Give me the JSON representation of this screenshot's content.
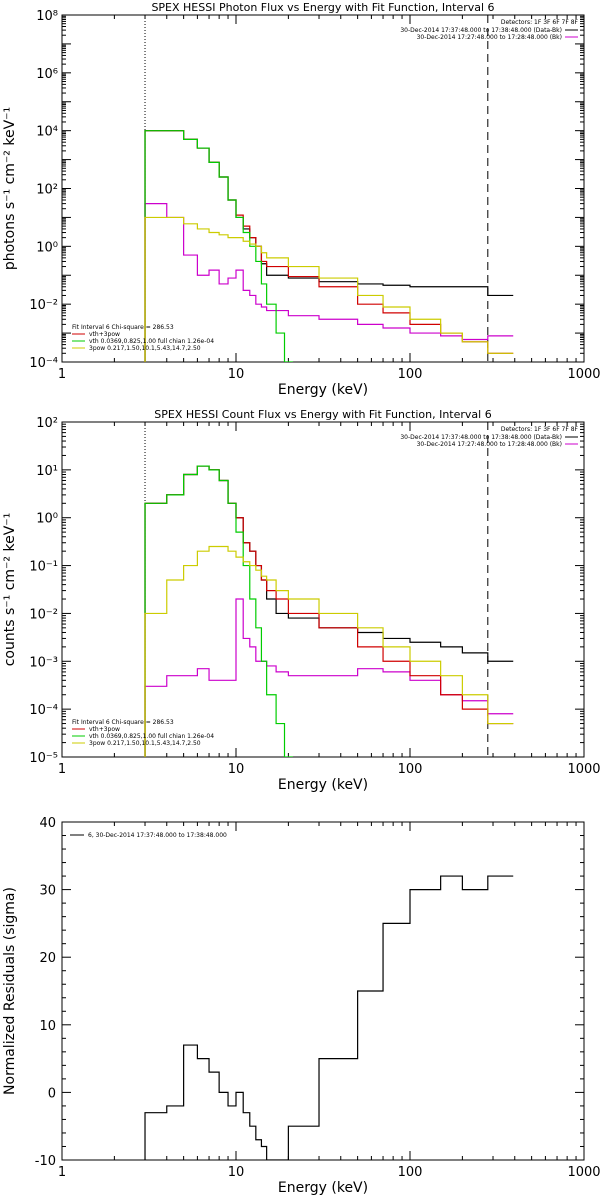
{
  "chart_data": [
    {
      "type": "line",
      "title": "SPEX HESSI Photon Flux vs Energy with Fit Function, Interval 6",
      "xlabel": "Energy (keV)",
      "ylabel": "photons s⁻¹ cm⁻² keV⁻¹",
      "xscale": "log",
      "yscale": "log",
      "xlim": [
        1,
        1000
      ],
      "ylim": [
        0.0001,
        100000000
      ],
      "x_ticks": [
        "1",
        "10",
        "100",
        "1000"
      ],
      "y_ticks": [
        "10⁻⁴",
        "10⁻²",
        "10⁰",
        "10²",
        "10⁴",
        "10⁶",
        "10⁸"
      ],
      "vlines": [
        3,
        280
      ],
      "header": {
        "detectors": "Detectors: 1F 3F 6F 7F 8F",
        "lines": [
          {
            "text": "30-Dec-2014 17:37:48.000 to 17:38:48.000 (Data-Bk)",
            "color": "#000000"
          },
          {
            "text": "30-Dec-2014 17:27:48.000 to 17:28:48.000 (Bk)",
            "color": "#cc00cc"
          }
        ]
      },
      "fit_info": {
        "header": "Fit Interval  6    Chi-square = 286.53",
        "lines": [
          {
            "text": "vth+3pow",
            "color": "#d00000"
          },
          {
            "text": "vth 0.0369,0.825,1.00  full chian 1.26e-04",
            "color": "#00cc00"
          },
          {
            "text": "3pow 0.217,1.50,10.1,5.43,14.7,2.50",
            "color": "#cccc00"
          }
        ]
      },
      "series": [
        {
          "name": "Data-Bk",
          "color": "#000000",
          "x": [
            3,
            4,
            5,
            6,
            7,
            8,
            9,
            10,
            11,
            12,
            13,
            14,
            15,
            20,
            30,
            50,
            70,
            100,
            150,
            200,
            280
          ],
          "y": [
            10000,
            10000,
            5000,
            2500,
            800,
            250,
            40,
            10,
            4,
            2,
            1,
            0.25,
            0.1,
            0.08,
            0.06,
            0.05,
            0.045,
            0.04,
            0.04,
            0.04,
            0.02
          ]
        },
        {
          "name": "Bk",
          "color": "#cc00cc",
          "x": [
            3,
            4,
            5,
            6,
            7,
            8,
            9,
            10,
            11,
            12,
            13,
            14,
            15,
            20,
            30,
            50,
            70,
            100,
            150,
            200,
            280
          ],
          "y": [
            30,
            10,
            0.5,
            0.1,
            0.15,
            0.05,
            0.08,
            0.15,
            0.03,
            0.02,
            0.01,
            0.008,
            0.006,
            0.004,
            0.003,
            0.002,
            0.0015,
            0.001,
            0.0008,
            0.0006,
            0.0008
          ]
        },
        {
          "name": "vth+3pow",
          "color": "#d00000",
          "x": [
            3,
            4,
            5,
            6,
            7,
            8,
            9,
            10,
            11,
            12,
            13,
            14,
            15,
            20,
            30,
            50,
            70,
            100,
            150,
            200,
            280
          ],
          "y": [
            10000,
            10000,
            5000,
            2500,
            800,
            250,
            40,
            12,
            5,
            2,
            1,
            0.3,
            0.2,
            0.09,
            0.04,
            0.01,
            0.005,
            0.002,
            0.001,
            0.0005,
            0.0002
          ]
        },
        {
          "name": "vth",
          "color": "#00cc00",
          "x": [
            3,
            4,
            5,
            6,
            7,
            8,
            9,
            10,
            11,
            12,
            13,
            14,
            15,
            17,
            19
          ],
          "y": [
            10000,
            10000,
            5000,
            2500,
            800,
            250,
            40,
            10,
            3,
            1,
            0.3,
            0.05,
            0.01,
            0.001,
            0.0001
          ]
        },
        {
          "name": "3pow",
          "color": "#cccc00",
          "x": [
            3,
            4,
            5,
            6,
            7,
            8,
            9,
            10,
            11,
            12,
            13,
            14,
            15,
            20,
            30,
            50,
            70,
            100,
            150,
            200,
            280
          ],
          "y": [
            10,
            10,
            6,
            4,
            3,
            2.5,
            2,
            2,
            1.5,
            1.2,
            1,
            0.6,
            0.4,
            0.2,
            0.08,
            0.02,
            0.008,
            0.003,
            0.001,
            0.0005,
            0.0002
          ]
        }
      ]
    },
    {
      "type": "line",
      "title": "SPEX HESSI Count Flux vs Energy with Fit Function, Interval 6",
      "xlabel": "Energy (keV)",
      "ylabel": "counts s⁻¹ cm⁻² keV⁻¹",
      "xscale": "log",
      "yscale": "log",
      "xlim": [
        1,
        1000
      ],
      "ylim": [
        1e-05,
        100
      ],
      "x_ticks": [
        "1",
        "10",
        "100",
        "1000"
      ],
      "y_ticks": [
        "10⁻⁵",
        "10⁻⁴",
        "10⁻³",
        "10⁻²",
        "10⁻¹",
        "10⁰",
        "10¹",
        "10²"
      ],
      "vlines": [
        3,
        280
      ],
      "header": {
        "detectors": "Detectors: 1F 3F 6F 7F 8F",
        "lines": [
          {
            "text": "30-Dec-2014 17:37:48.000 to 17:38:48.000 (Data-Bk)",
            "color": "#000000"
          },
          {
            "text": "30-Dec-2014 17:27:48.000 to 17:28:48.000 (Bk)",
            "color": "#cc00cc"
          }
        ]
      },
      "fit_info": {
        "header": "Fit Interval  6    Chi-square = 286.53",
        "lines": [
          {
            "text": "vth+3pow",
            "color": "#d00000"
          },
          {
            "text": "vth 0.0369,0.825,1.00  full chian 1.26e-04",
            "color": "#00cc00"
          },
          {
            "text": "3pow 0.217,1.50,10.1,5.43,14.7,2.50",
            "color": "#cccc00"
          }
        ]
      },
      "series": [
        {
          "name": "Data-Bk",
          "color": "#000000",
          "x": [
            3,
            4,
            5,
            6,
            7,
            8,
            9,
            10,
            11,
            12,
            13,
            14,
            15,
            17,
            20,
            30,
            50,
            70,
            100,
            150,
            200,
            280
          ],
          "y": [
            2,
            3,
            8,
            12,
            10,
            6,
            2,
            1,
            0.3,
            0.2,
            0.1,
            0.05,
            0.02,
            0.01,
            0.008,
            0.005,
            0.004,
            0.003,
            0.0025,
            0.002,
            0.0015,
            0.001
          ]
        },
        {
          "name": "Bk",
          "color": "#cc00cc",
          "x": [
            3,
            4,
            5,
            6,
            7,
            8,
            9,
            10,
            11,
            12,
            13,
            14,
            15,
            17,
            20,
            30,
            50,
            70,
            100,
            150,
            200,
            280
          ],
          "y": [
            0.0003,
            0.0005,
            0.0005,
            0.0007,
            0.0004,
            0.0004,
            0.0004,
            0.02,
            0.003,
            0.002,
            0.001,
            0.001,
            0.0008,
            0.0006,
            0.0005,
            0.0005,
            0.0007,
            0.0006,
            0.0004,
            0.0002,
            0.00015,
            8e-05
          ]
        },
        {
          "name": "vth+3pow",
          "color": "#d00000",
          "x": [
            3,
            4,
            5,
            6,
            7,
            8,
            9,
            10,
            11,
            12,
            13,
            14,
            15,
            17,
            20,
            30,
            50,
            70,
            100,
            150,
            200,
            280
          ],
          "y": [
            2,
            3,
            8,
            12,
            10,
            6,
            2,
            1,
            0.3,
            0.2,
            0.1,
            0.05,
            0.03,
            0.02,
            0.01,
            0.005,
            0.002,
            0.001,
            0.0005,
            0.0002,
            0.0001,
            5e-05
          ]
        },
        {
          "name": "vth",
          "color": "#00cc00",
          "x": [
            3,
            4,
            5,
            6,
            7,
            8,
            9,
            10,
            11,
            12,
            13,
            14,
            15,
            17,
            19
          ],
          "y": [
            2,
            3,
            8,
            12,
            10,
            6,
            2,
            0.5,
            0.1,
            0.02,
            0.005,
            0.001,
            0.0002,
            5e-05,
            1e-05
          ]
        },
        {
          "name": "3pow",
          "color": "#cccc00",
          "x": [
            3,
            4,
            5,
            6,
            7,
            8,
            9,
            10,
            11,
            12,
            13,
            14,
            15,
            17,
            20,
            30,
            50,
            70,
            100,
            150,
            200,
            280
          ],
          "y": [
            0.01,
            0.05,
            0.1,
            0.2,
            0.25,
            0.25,
            0.2,
            0.15,
            0.12,
            0.1,
            0.08,
            0.06,
            0.05,
            0.03,
            0.02,
            0.01,
            0.005,
            0.002,
            0.001,
            0.0005,
            0.0002,
            5e-05
          ]
        }
      ]
    },
    {
      "type": "line",
      "title": "",
      "xlabel": "Energy (keV)",
      "ylabel": "Normalized Residuals (sigma)",
      "xscale": "log",
      "yscale": "linear",
      "xlim": [
        1,
        1000
      ],
      "ylim": [
        -10,
        40
      ],
      "x_ticks": [
        "1",
        "10",
        "100",
        "1000"
      ],
      "y_ticks": [
        "-10",
        "0",
        "10",
        "20",
        "30",
        "40"
      ],
      "legend": [
        {
          "text": "6, 30-Dec-2014 17:37:48.000 to 17:38:48.000",
          "color": "#000000"
        }
      ],
      "series": [
        {
          "name": "6, 30-Dec-2014 17:37:48.000 to 17:38:48.000",
          "color": "#000000",
          "x": [
            3,
            4,
            5,
            6,
            7,
            8,
            9,
            10,
            11,
            12,
            13,
            14,
            15,
            20,
            30,
            50,
            70,
            100,
            150,
            200,
            280
          ],
          "y": [
            -3,
            -2,
            7,
            5,
            3,
            0,
            -2,
            0,
            -3,
            -5,
            -7,
            -8,
            -10,
            -5,
            5,
            15,
            25,
            30,
            32,
            30,
            32
          ]
        }
      ]
    }
  ]
}
